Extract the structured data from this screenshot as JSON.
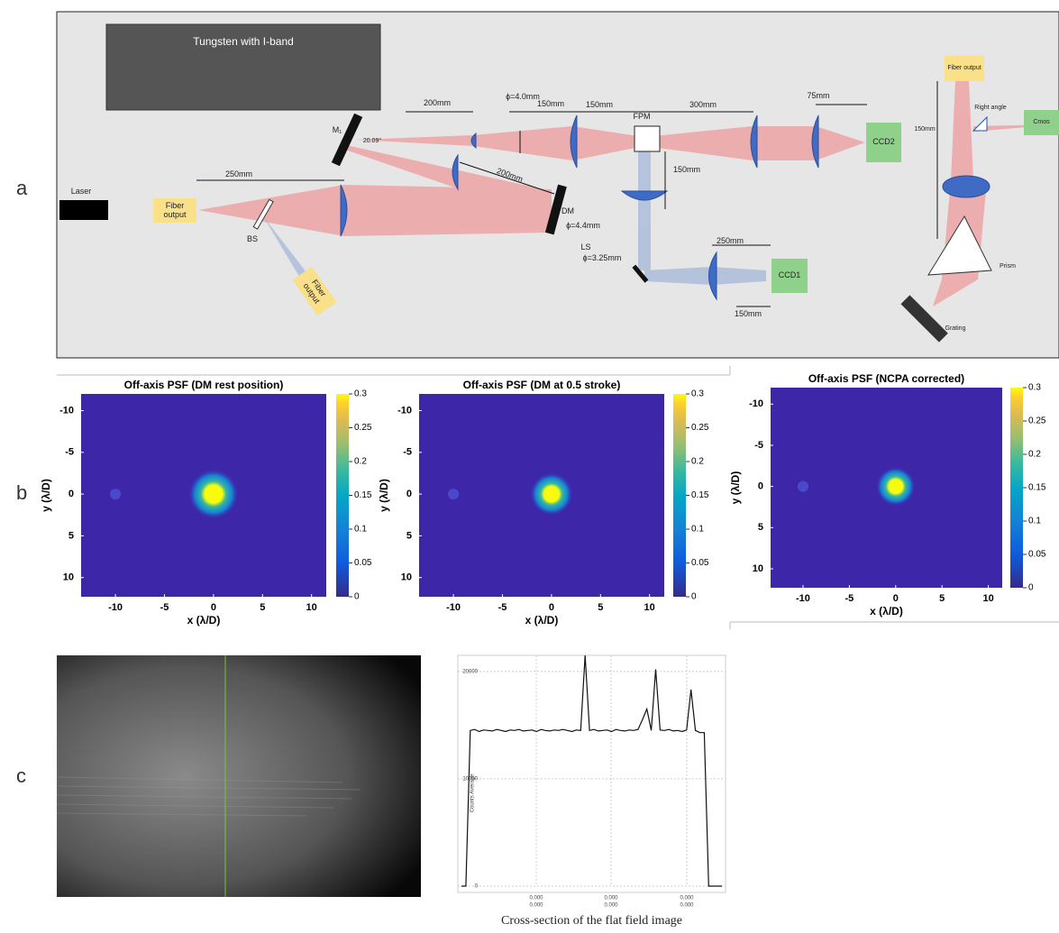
{
  "panel_labels": [
    "a",
    "b",
    "c"
  ],
  "diagram": {
    "labels": [
      "Tungsten with I-band",
      "Laser",
      "Fiber output",
      "250mm",
      "BS",
      "Fiber output",
      "M₁",
      "20.09°",
      "200mm",
      "200mm",
      "ϕ=4.0mm",
      "150mm",
      "150mm",
      "FPM",
      "300mm",
      "75mm",
      "CCD2",
      "150mm",
      "DM",
      "ϕ=4.4mm",
      "LS",
      "ϕ=3.25mm",
      "250mm",
      "CCD1",
      "150mm",
      "Fiber output",
      "Right angle",
      "150mm",
      "Cmos",
      "Prism",
      "Grating"
    ]
  },
  "chart_data": [
    {
      "type": "heatmap",
      "title": "Off-axis PSF (DM rest position)",
      "xlabel": "x (λ/D)",
      "ylabel": "y (λ/D)",
      "xlim": [
        -13.5,
        11.5
      ],
      "xticks": [
        -10,
        -5,
        0,
        5,
        10
      ],
      "ylim": [
        -12,
        12.3
      ],
      "yticks": [
        -10,
        -5,
        0,
        5,
        10
      ],
      "y_reversed": true,
      "clim": [
        0,
        0.3
      ],
      "cticks": [
        0,
        0.05,
        0.1,
        0.15,
        0.2,
        0.25,
        0.3
      ]
    },
    {
      "type": "heatmap",
      "title": "Off-axis PSF (DM at 0.5 stroke)",
      "xlabel": "x (λ/D)",
      "ylabel": "y (λ/D)",
      "xlim": [
        -13.5,
        11.5
      ],
      "xticks": [
        -10,
        -5,
        0,
        5,
        10
      ],
      "ylim": [
        -12,
        12.3
      ],
      "yticks": [
        -10,
        -5,
        0,
        5,
        10
      ],
      "y_reversed": true,
      "clim": [
        0,
        0.3
      ],
      "cticks": [
        0,
        0.05,
        0.1,
        0.15,
        0.2,
        0.25,
        0.3
      ]
    },
    {
      "type": "heatmap",
      "title": "Off-axis PSF (NCPA corrected)",
      "xlabel": "x (λ/D)",
      "ylabel": "y (λ/D)",
      "xlim": [
        -13.5,
        11.5
      ],
      "xticks": [
        -10,
        -5,
        0,
        5,
        10
      ],
      "ylim": [
        -12,
        12.3
      ],
      "yticks": [
        -10,
        -5,
        0,
        5,
        10
      ],
      "y_reversed": true,
      "clim": [
        0,
        0.3
      ],
      "cticks": [
        0,
        0.05,
        0.1,
        0.15,
        0.2,
        0.25,
        0.3
      ]
    },
    {
      "type": "line",
      "caption": "Cross-section of the flat field image",
      "ylabel": "Counts Average",
      "color": "#111111",
      "ylim": [
        0,
        21500
      ],
      "yticks": [
        0,
        10000,
        20000
      ],
      "grid": true,
      "xtick_labels": [
        [
          "0.000",
          "0.000"
        ],
        [
          "0.000",
          "0.000"
        ],
        [
          "0.000",
          "0.000"
        ]
      ],
      "values": [
        0,
        0,
        14500,
        14600,
        14400,
        14550,
        14500,
        14450,
        14600,
        14500,
        14400,
        14550,
        14500,
        14600,
        14450,
        14500,
        14550,
        14400,
        14600,
        14500,
        14450,
        14550,
        14500,
        14600,
        14500,
        14400,
        14550,
        14500,
        21500,
        14500,
        14600,
        14450,
        14500,
        14550,
        14400,
        14600,
        14500,
        14450,
        14550,
        14500,
        14600,
        15500,
        16500,
        14500,
        20200,
        14550,
        14500,
        14600,
        14450,
        14500,
        14400,
        14550,
        18300,
        14500,
        14300,
        14300,
        0,
        0,
        0,
        0
      ]
    }
  ]
}
